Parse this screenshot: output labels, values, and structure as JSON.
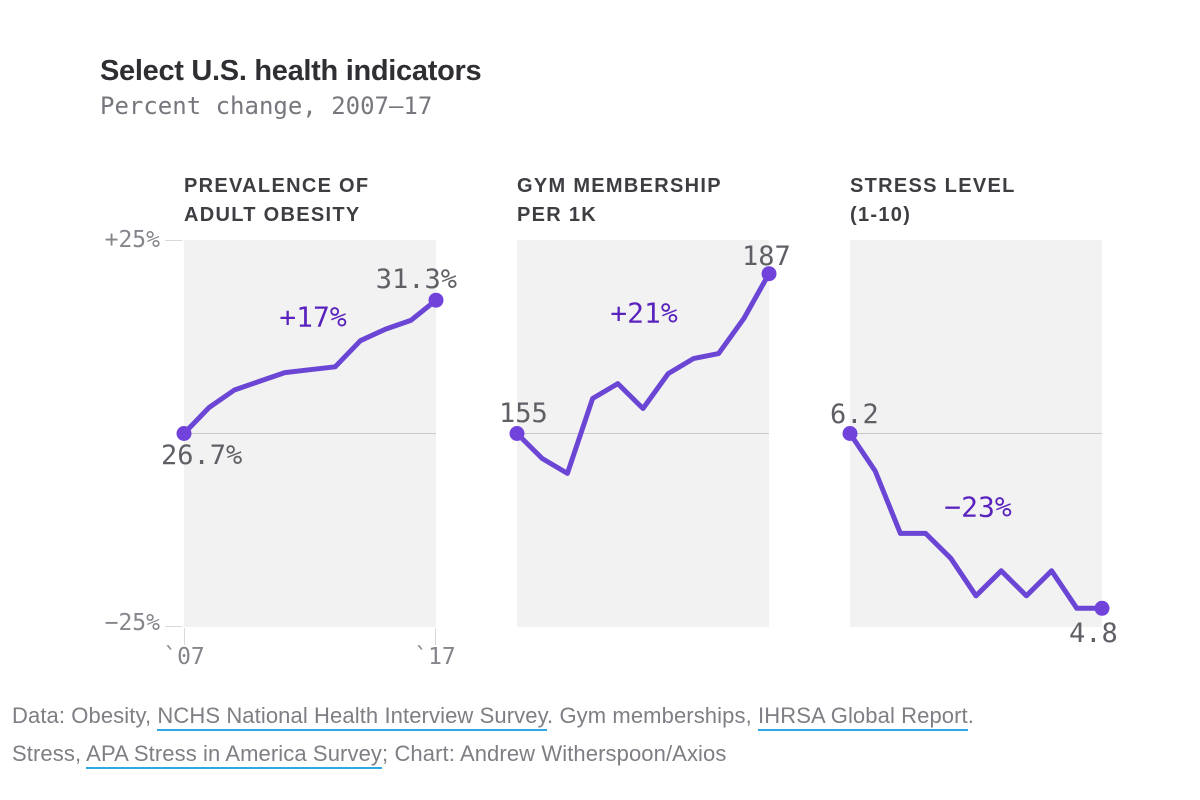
{
  "title": "Select U.S. health indicators",
  "subtitle": "Percent change, 2007–17",
  "axes": {
    "y_top_label": "+25%",
    "y_bottom_label": "−25%",
    "x_start_label": "`07",
    "x_end_label": "`17"
  },
  "colors": {
    "accent_line": "#6b46d5",
    "accent_dot": "#7243da",
    "annotation": "#5b23bd",
    "plot_background": "#f2f2f2",
    "zero_line": "#c9c9c9",
    "link_underline": "#2fa7e3",
    "text_dark": "#2f2f33",
    "text_gray": "#7e7e84"
  },
  "chart_data": [
    {
      "type": "line",
      "title": "PREVALENCE OF ADULT OBESITY",
      "header_lines": [
        "PREVALENCE OF",
        "ADULT OBESITY"
      ],
      "x": [
        2007,
        2008,
        2009,
        2010,
        2011,
        2012,
        2013,
        2014,
        2015,
        2016,
        2017
      ],
      "values_raw": [
        26.7,
        27.6,
        28.2,
        28.5,
        28.8,
        28.9,
        29.0,
        29.9,
        30.3,
        30.6,
        31.3
      ],
      "unit": "% of adults",
      "ylabel": "Percent change",
      "ylim": [
        -25,
        25
      ],
      "start_label": "26.7%",
      "end_label": "31.3%",
      "annotation": "+17%"
    },
    {
      "type": "line",
      "title": "GYM MEMBERSHIP PER 1K",
      "header_lines": [
        "GYM MEMBERSHIP",
        "PER 1K"
      ],
      "x": [
        2007,
        2008,
        2009,
        2010,
        2011,
        2012,
        2013,
        2014,
        2015,
        2016,
        2017
      ],
      "values_raw": [
        155,
        150,
        147,
        162,
        165,
        160,
        167,
        170,
        171,
        178,
        187
      ],
      "unit": "memberships per 1k",
      "ylabel": "Percent change",
      "ylim": [
        -25,
        25
      ],
      "start_label": "155",
      "end_label": "187",
      "annotation": "+21%"
    },
    {
      "type": "line",
      "title": "STRESS LEVEL (1-10)",
      "header_lines": [
        "STRESS LEVEL",
        "(1-10)"
      ],
      "x": [
        2007,
        2008,
        2009,
        2010,
        2011,
        2012,
        2013,
        2014,
        2015,
        2016,
        2017
      ],
      "values_raw": [
        6.2,
        5.9,
        5.4,
        5.4,
        5.2,
        4.9,
        5.1,
        4.9,
        5.1,
        4.8,
        4.8
      ],
      "unit": "stress level (1-10)",
      "ylabel": "Percent change",
      "ylim": [
        -25,
        25
      ],
      "start_label": "6.2",
      "end_label": "4.8",
      "annotation": "−23%"
    }
  ],
  "footer": {
    "line1": {
      "seg0": "Data: Obesity, ",
      "link1": "NCHS National Health Interview Survey",
      "seg2": ". Gym memberships, ",
      "link3": "IHRSA Global Report",
      "seg4": "."
    },
    "line2": {
      "seg0": "Stress, ",
      "link1": "APA Stress in America Survey",
      "seg2": "; Chart: Andrew Witherspoon/Axios"
    }
  }
}
